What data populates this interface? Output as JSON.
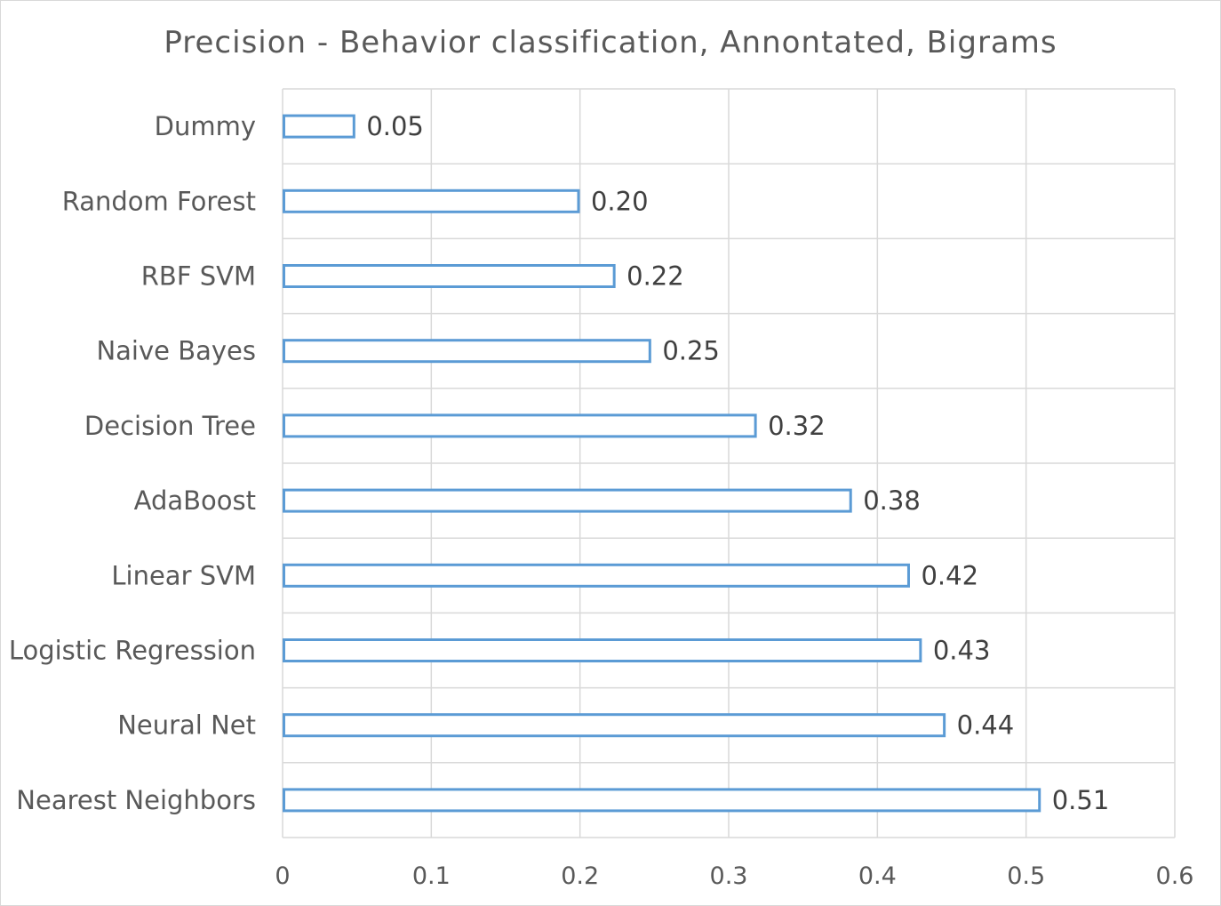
{
  "chart_data": {
    "type": "bar",
    "orientation": "horizontal",
    "title": "Precision - Behavior classification, Annontated, Bigrams",
    "xlabel": "",
    "ylabel": "",
    "categories": [
      "Dummy",
      "Random Forest",
      "RBF SVM",
      "Naive Bayes",
      "Decision Tree",
      "AdaBoost",
      "Linear SVM",
      "Logistic Regression",
      "Neural Net",
      "Nearest Neighbors"
    ],
    "values": [
      0.048,
      0.199,
      0.223,
      0.247,
      0.318,
      0.382,
      0.421,
      0.429,
      0.445,
      0.509
    ],
    "value_labels": [
      "0.05",
      "0.20",
      "0.22",
      "0.25",
      "0.32",
      "0.38",
      "0.42",
      "0.43",
      "0.44",
      "0.51"
    ],
    "xlim": [
      0,
      0.6
    ],
    "x_ticks": [
      0,
      0.1,
      0.2,
      0.3,
      0.4,
      0.5,
      0.6
    ],
    "x_tick_labels": [
      "0",
      "0.1",
      "0.2",
      "0.3",
      "0.4",
      "0.5",
      "0.6"
    ],
    "grid": true,
    "legend": "none",
    "colors": {
      "bar_outline": "#5b9bd5",
      "bar_fill": "#ffffff",
      "grid": "#d9d9d9",
      "text": "#595959"
    }
  }
}
